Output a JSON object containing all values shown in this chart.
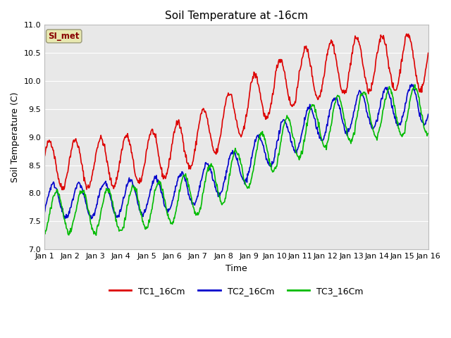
{
  "title": "Soil Temperature at -16cm",
  "xlabel": "Time",
  "ylabel": "Soil Temperature (C)",
  "ylim": [
    7.0,
    11.0
  ],
  "yticks": [
    7.0,
    7.5,
    8.0,
    8.5,
    9.0,
    9.5,
    10.0,
    10.5,
    11.0
  ],
  "xtick_labels": [
    "Jan 1",
    "Jan 2",
    "Jan 3",
    "Jan 4",
    "Jan 5",
    "Jan 6",
    "Jan 7",
    "Jan 8",
    "Jan 9",
    "Jan 10",
    "Jan 11",
    "Jan 12",
    "Jan 13",
    "Jan 14",
    "Jan 15",
    "Jan 16"
  ],
  "legend_labels": [
    "TC1_16Cm",
    "TC2_16Cm",
    "TC3_16Cm"
  ],
  "legend_colors": [
    "#dd0000",
    "#0000cc",
    "#00bb00"
  ],
  "annotation_text": "SI_met",
  "annotation_color": "#880000",
  "annotation_bg": "#e8e8b0",
  "fig_bg": "#ffffff",
  "plot_bg": "#e8e8e8",
  "grid_color": "#ffffff",
  "line_width": 1.2
}
